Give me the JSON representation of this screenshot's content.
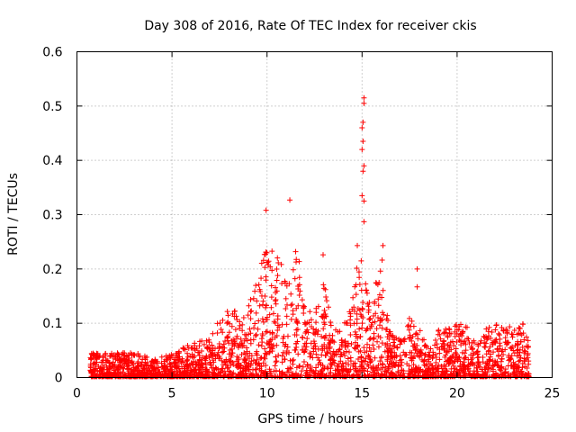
{
  "chart_data": {
    "type": "scatter",
    "title": "Day 308 of 2016, Rate Of TEC Index for receiver ckis",
    "xlabel": "GPS time / hours",
    "ylabel": "ROTI / TECUs",
    "xlim": [
      0,
      25
    ],
    "ylim": [
      0,
      0.6
    ],
    "x_ticks": [
      "0",
      "5",
      "10",
      "15",
      "20",
      "25"
    ],
    "y_ticks": [
      "0",
      "0.1",
      "0.2",
      "0.3",
      "0.4",
      "0.5",
      "0.6"
    ],
    "grid": true,
    "marker": "+",
    "series_color": "#ff0000",
    "notable_points": [
      {
        "x": 9.95,
        "y": 0.308
      },
      {
        "x": 11.2,
        "y": 0.327
      },
      {
        "x": 12.95,
        "y": 0.226
      },
      {
        "x": 14.75,
        "y": 0.243
      },
      {
        "x": 15.1,
        "y": 0.515
      },
      {
        "x": 15.1,
        "y": 0.505
      },
      {
        "x": 15.05,
        "y": 0.47
      },
      {
        "x": 15.0,
        "y": 0.46
      },
      {
        "x": 15.05,
        "y": 0.435
      },
      {
        "x": 15.0,
        "y": 0.42
      },
      {
        "x": 15.1,
        "y": 0.39
      },
      {
        "x": 15.05,
        "y": 0.38
      },
      {
        "x": 15.0,
        "y": 0.335
      },
      {
        "x": 15.1,
        "y": 0.325
      },
      {
        "x": 15.1,
        "y": 0.287
      },
      {
        "x": 16.1,
        "y": 0.243
      },
      {
        "x": 17.9,
        "y": 0.2
      },
      {
        "x": 17.9,
        "y": 0.167
      }
    ],
    "envelope": [
      {
        "x": 0.7,
        "y": 0.045
      },
      {
        "x": 2.0,
        "y": 0.045
      },
      {
        "x": 3.0,
        "y": 0.048
      },
      {
        "x": 4.0,
        "y": 0.035
      },
      {
        "x": 5.0,
        "y": 0.045
      },
      {
        "x": 6.0,
        "y": 0.065
      },
      {
        "x": 7.0,
        "y": 0.07
      },
      {
        "x": 7.5,
        "y": 0.11
      },
      {
        "x": 8.0,
        "y": 0.13
      },
      {
        "x": 8.5,
        "y": 0.12
      },
      {
        "x": 9.0,
        "y": 0.13
      },
      {
        "x": 9.5,
        "y": 0.18
      },
      {
        "x": 10.0,
        "y": 0.25
      },
      {
        "x": 10.5,
        "y": 0.22
      },
      {
        "x": 11.0,
        "y": 0.23
      },
      {
        "x": 11.5,
        "y": 0.25
      },
      {
        "x": 12.0,
        "y": 0.16
      },
      {
        "x": 12.5,
        "y": 0.13
      },
      {
        "x": 13.0,
        "y": 0.18
      },
      {
        "x": 13.5,
        "y": 0.09
      },
      {
        "x": 14.0,
        "y": 0.09
      },
      {
        "x": 14.5,
        "y": 0.18
      },
      {
        "x": 15.0,
        "y": 0.23
      },
      {
        "x": 15.5,
        "y": 0.12
      },
      {
        "x": 16.0,
        "y": 0.24
      },
      {
        "x": 16.5,
        "y": 0.08
      },
      {
        "x": 17.0,
        "y": 0.07
      },
      {
        "x": 17.5,
        "y": 0.11
      },
      {
        "x": 18.0,
        "y": 0.09
      },
      {
        "x": 18.5,
        "y": 0.06
      },
      {
        "x": 19.0,
        "y": 0.09
      },
      {
        "x": 19.5,
        "y": 0.09
      },
      {
        "x": 20.0,
        "y": 0.1
      },
      {
        "x": 20.5,
        "y": 0.1
      },
      {
        "x": 21.0,
        "y": 0.07
      },
      {
        "x": 21.5,
        "y": 0.09
      },
      {
        "x": 22.0,
        "y": 0.1
      },
      {
        "x": 22.5,
        "y": 0.1
      },
      {
        "x": 23.0,
        "y": 0.09
      },
      {
        "x": 23.5,
        "y": 0.1
      },
      {
        "x": 23.8,
        "y": 0.07
      }
    ],
    "x_range_of_data": [
      0.7,
      23.8
    ]
  }
}
